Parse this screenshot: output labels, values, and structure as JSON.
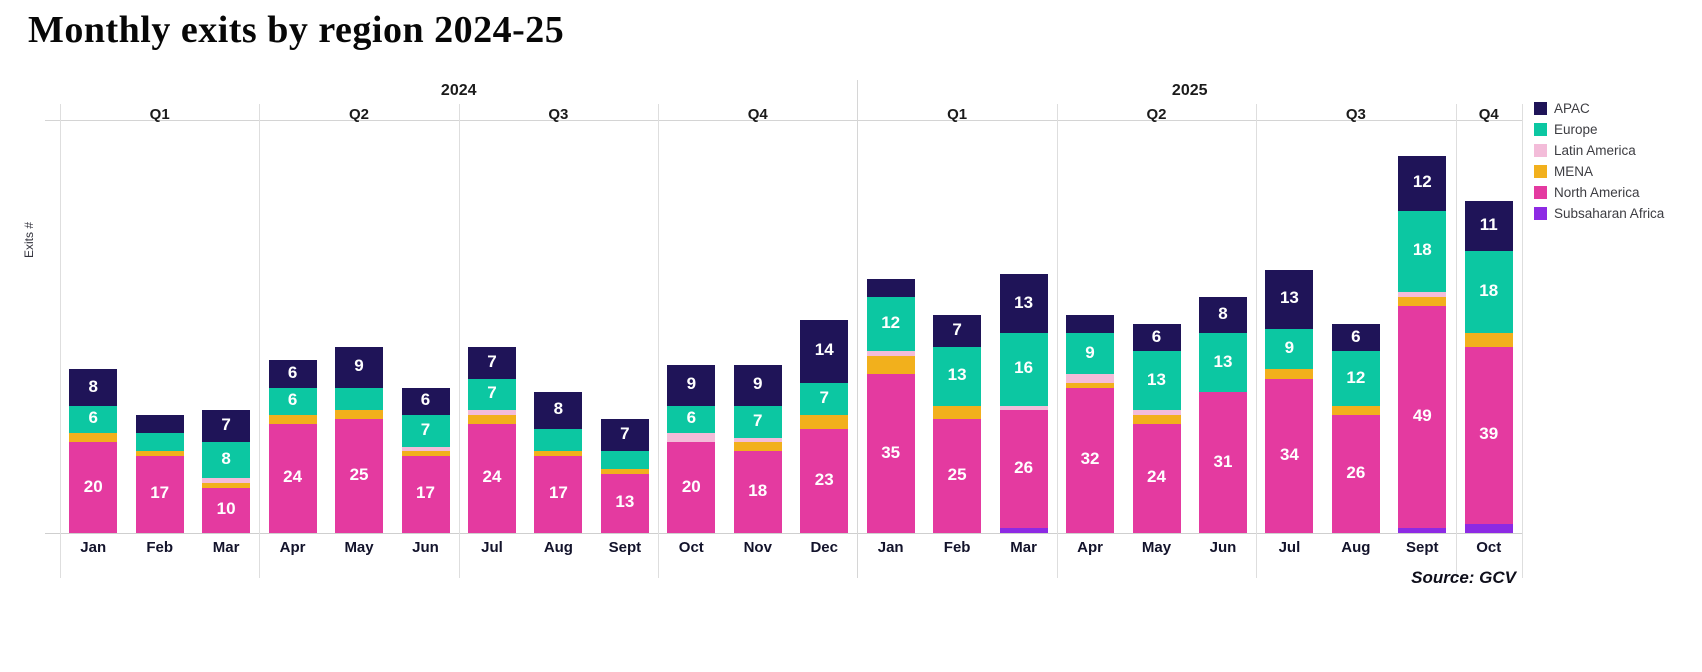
{
  "title": "Monthly exits by region 2024-25",
  "y_axis_label": "Exits #",
  "source": "Source: GCV",
  "legend": [
    {
      "label": "APAC",
      "color": "#1f1458"
    },
    {
      "label": "Europe",
      "color": "#0cc7a2"
    },
    {
      "label": "Latin America",
      "color": "#f3bcd9"
    },
    {
      "label": "MENA",
      "color": "#f2b01c"
    },
    {
      "label": "North America",
      "color": "#e43aa0"
    },
    {
      "label": "Subsaharan Africa",
      "color": "#8d2ae4"
    }
  ],
  "chart_data": {
    "type": "bar",
    "stacked": true,
    "title": "Monthly exits by region 2024-25",
    "ylabel": "Exits #",
    "grid": false,
    "legend_position": "right",
    "value_label_min": 6,
    "stack_order_bottom_to_top": [
      "Subsaharan Africa",
      "North America",
      "MENA",
      "Latin America",
      "Europe",
      "APAC"
    ],
    "categories": [
      "Jan",
      "Feb",
      "Mar",
      "Apr",
      "May",
      "Jun",
      "Jul",
      "Aug",
      "Sept",
      "Oct",
      "Nov",
      "Dec",
      "Jan",
      "Feb",
      "Mar",
      "Apr",
      "May",
      "Jun",
      "Jul",
      "Aug",
      "Sept",
      "Oct"
    ],
    "facets": [
      {
        "year": "2024",
        "quarter": "Q1",
        "months": [
          "Jan",
          "Feb",
          "Mar"
        ]
      },
      {
        "year": "2024",
        "quarter": "Q2",
        "months": [
          "Apr",
          "May",
          "Jun"
        ]
      },
      {
        "year": "2024",
        "quarter": "Q3",
        "months": [
          "Jul",
          "Aug",
          "Sept"
        ]
      },
      {
        "year": "2024",
        "quarter": "Q4",
        "months": [
          "Oct",
          "Nov",
          "Dec"
        ]
      },
      {
        "year": "2025",
        "quarter": "Q1",
        "months": [
          "Jan",
          "Feb",
          "Mar"
        ]
      },
      {
        "year": "2025",
        "quarter": "Q2",
        "months": [
          "Apr",
          "May",
          "Jun"
        ]
      },
      {
        "year": "2025",
        "quarter": "Q3",
        "months": [
          "Jul",
          "Aug",
          "Sept"
        ]
      },
      {
        "year": "2025",
        "quarter": "Q4",
        "months": [
          "Oct"
        ]
      }
    ],
    "years": [
      "2024",
      "2025"
    ],
    "series": [
      {
        "name": "APAC",
        "color": "#1f1458",
        "values": [
          8,
          4,
          7,
          6,
          9,
          6,
          7,
          8,
          7,
          9,
          9,
          14,
          4,
          7,
          13,
          4,
          6,
          8,
          13,
          6,
          12,
          11
        ]
      },
      {
        "name": "Europe",
        "color": "#0cc7a2",
        "values": [
          6,
          4,
          8,
          6,
          5,
          7,
          7,
          5,
          4,
          6,
          7,
          7,
          12,
          13,
          16,
          9,
          13,
          13,
          9,
          12,
          18,
          18
        ]
      },
      {
        "name": "Latin America",
        "color": "#f3bcd9",
        "values": [
          0,
          0,
          1,
          0,
          0,
          1,
          1,
          0,
          0,
          2,
          1,
          0,
          1,
          0,
          1,
          2,
          1,
          0,
          0,
          0,
          1,
          0
        ]
      },
      {
        "name": "MENA",
        "color": "#f2b01c",
        "values": [
          2,
          1,
          1,
          2,
          2,
          1,
          2,
          1,
          1,
          0,
          2,
          3,
          4,
          3,
          0,
          1,
          2,
          0,
          2,
          2,
          2,
          3
        ]
      },
      {
        "name": "North America",
        "color": "#e43aa0",
        "values": [
          20,
          17,
          10,
          24,
          25,
          17,
          24,
          17,
          13,
          20,
          18,
          23,
          35,
          25,
          26,
          32,
          24,
          31,
          34,
          26,
          49,
          39
        ]
      },
      {
        "name": "Subsaharan Africa",
        "color": "#8d2ae4",
        "values": [
          0,
          0,
          0,
          0,
          0,
          0,
          0,
          0,
          0,
          0,
          0,
          0,
          0,
          0,
          1,
          0,
          0,
          0,
          0,
          0,
          1,
          2
        ]
      }
    ]
  }
}
